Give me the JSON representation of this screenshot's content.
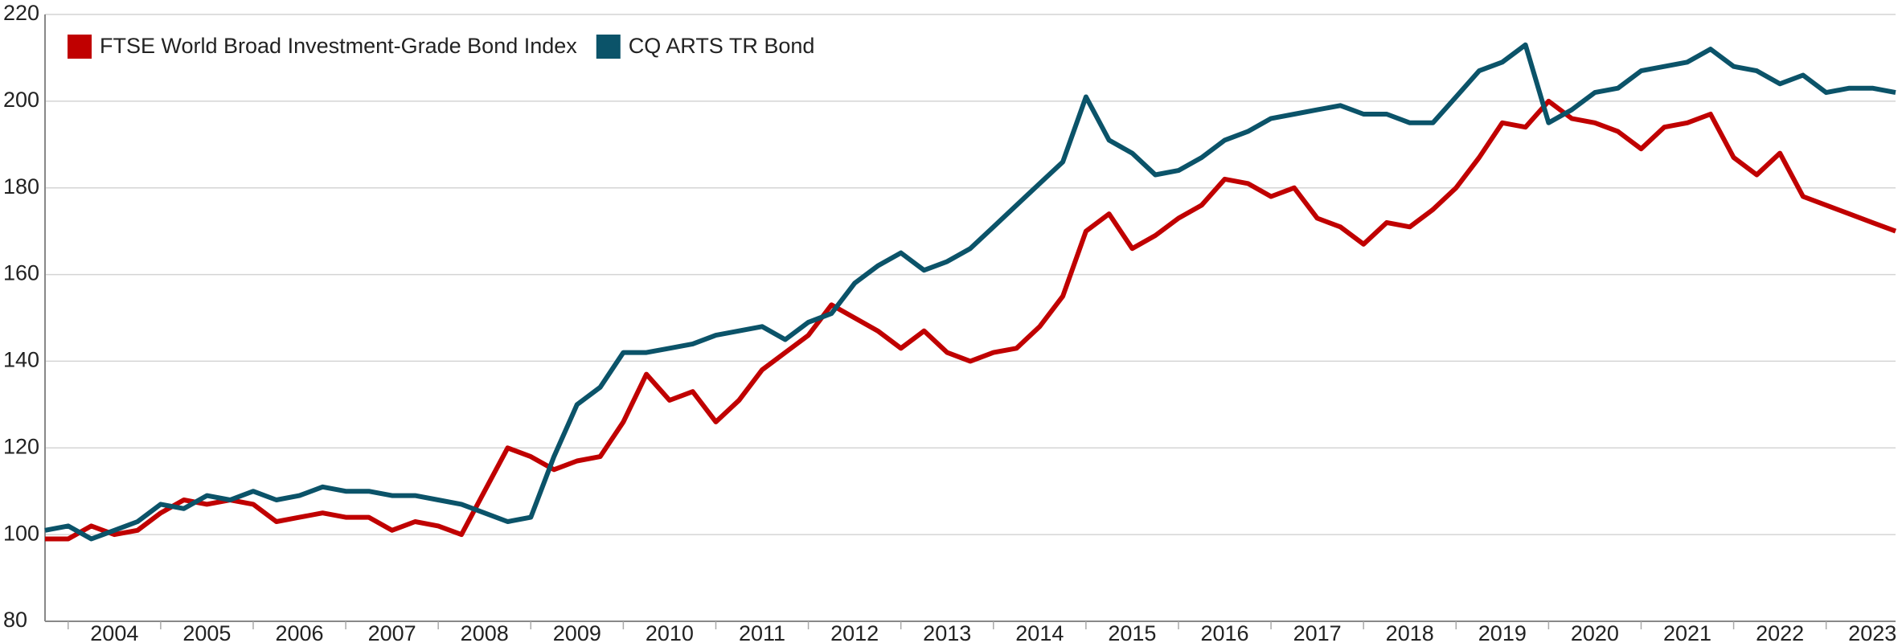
{
  "chart_data": {
    "type": "line",
    "x": [
      2003.75,
      2004,
      2004.25,
      2004.5,
      2004.75,
      2005,
      2005.25,
      2005.5,
      2005.75,
      2006,
      2006.25,
      2006.5,
      2006.75,
      2007,
      2007.25,
      2007.5,
      2007.75,
      2008,
      2008.25,
      2008.5,
      2008.75,
      2009,
      2009.25,
      2009.5,
      2009.75,
      2010,
      2010.25,
      2010.5,
      2010.75,
      2011,
      2011.25,
      2011.5,
      2011.75,
      2012,
      2012.25,
      2012.5,
      2012.75,
      2013,
      2013.25,
      2013.5,
      2013.75,
      2014,
      2014.25,
      2014.5,
      2014.75,
      2015,
      2015.25,
      2015.5,
      2015.75,
      2016,
      2016.25,
      2016.5,
      2016.75,
      2017,
      2017.25,
      2017.5,
      2017.75,
      2018,
      2018.25,
      2018.5,
      2018.75,
      2019,
      2019.25,
      2019.5,
      2019.75,
      2020,
      2020.25,
      2020.5,
      2020.75,
      2021,
      2021.25,
      2021.5,
      2021.75,
      2022,
      2022.25,
      2022.5,
      2022.75,
      2023,
      2023.25,
      2023.5,
      2023.75
    ],
    "series": [
      {
        "name": "FTSE World Broad Investment-Grade Bond Index",
        "color": "#c00000",
        "values": [
          99,
          99,
          102,
          100,
          101,
          105,
          108,
          107,
          108,
          107,
          103,
          104,
          105,
          104,
          104,
          101,
          103,
          102,
          100,
          110,
          120,
          118,
          115,
          117,
          118,
          126,
          137,
          131,
          133,
          126,
          131,
          138,
          142,
          146,
          153,
          150,
          147,
          143,
          147,
          142,
          140,
          142,
          143,
          148,
          155,
          170,
          174,
          166,
          169,
          173,
          176,
          182,
          181,
          178,
          180,
          173,
          171,
          167,
          172,
          171,
          175,
          180,
          187,
          195,
          194,
          200,
          196,
          195,
          193,
          189,
          194,
          195,
          197,
          187,
          183,
          188,
          178,
          176,
          174,
          172,
          170
        ]
      },
      {
        "name": "CQ ARTS TR Bond",
        "color": "#0b5369",
        "values": [
          101,
          102,
          99,
          101,
          103,
          107,
          106,
          109,
          108,
          110,
          108,
          109,
          111,
          110,
          110,
          109,
          109,
          108,
          107,
          105,
          103,
          104,
          118,
          130,
          134,
          142,
          142,
          143,
          144,
          146,
          147,
          148,
          145,
          149,
          151,
          158,
          162,
          165,
          161,
          163,
          166,
          171,
          176,
          181,
          186,
          201,
          191,
          188,
          183,
          184,
          187,
          191,
          193,
          196,
          197,
          198,
          199,
          197,
          197,
          195,
          195,
          201,
          207,
          209,
          213,
          195,
          198,
          202,
          203,
          207,
          208,
          209,
          212,
          208,
          207,
          204,
          206,
          202,
          203,
          203,
          202
        ]
      }
    ],
    "xlim": [
      2003.75,
      2023.75
    ],
    "xticks": [
      2004,
      2005,
      2006,
      2007,
      2008,
      2009,
      2010,
      2011,
      2012,
      2013,
      2014,
      2015,
      2016,
      2017,
      2018,
      2019,
      2020,
      2021,
      2022,
      2023
    ],
    "ylim": [
      80,
      220
    ],
    "yticks": [
      80,
      100,
      120,
      140,
      160,
      180,
      200,
      220
    ],
    "grid": true,
    "legend": "upper left"
  }
}
